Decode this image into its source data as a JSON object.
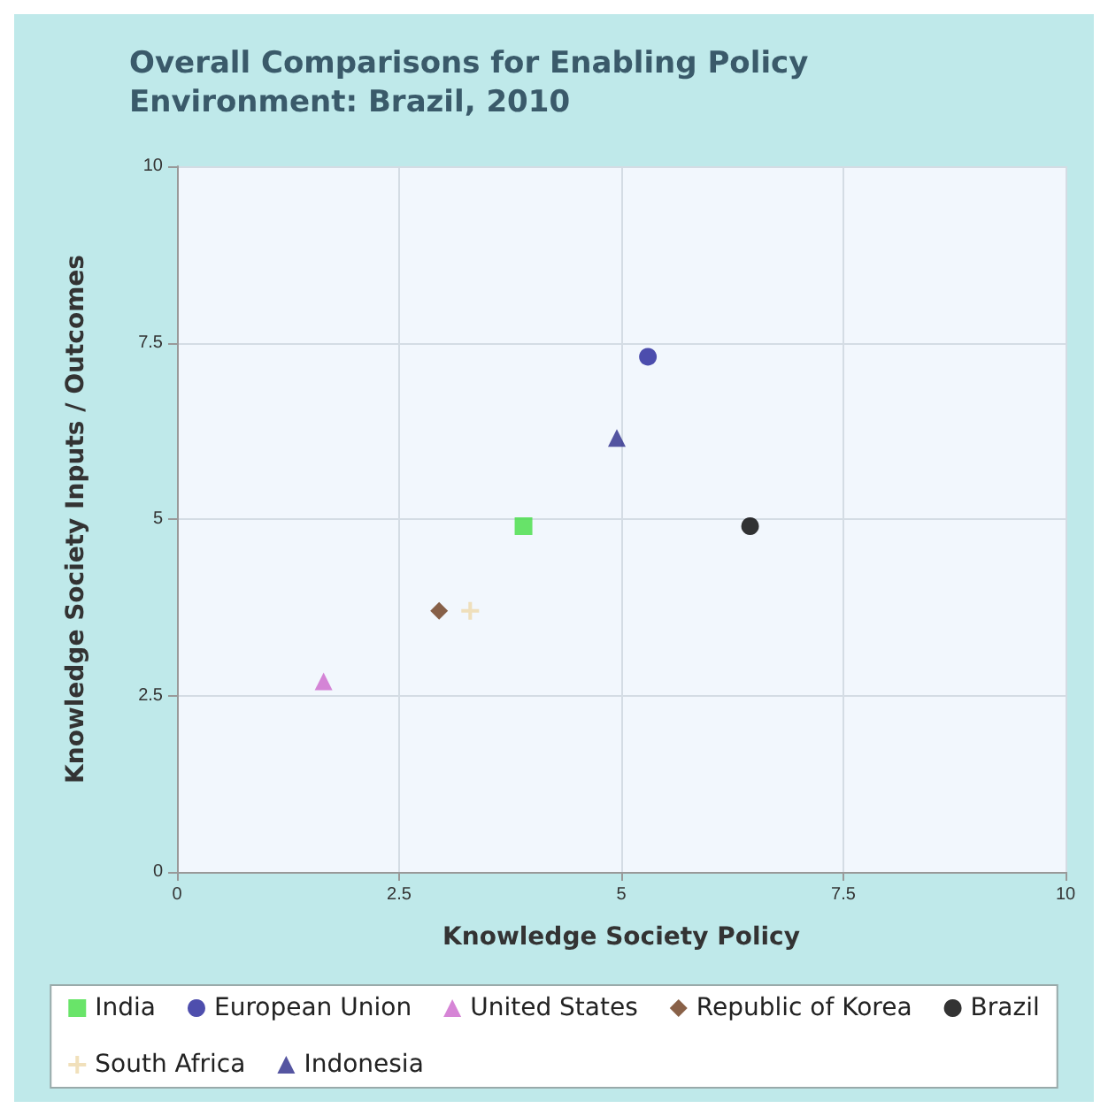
{
  "chart_data": {
    "type": "scatter",
    "title": "Overall Comparisons for Enabling Policy\nEnvironment: Brazil, 2010",
    "xlabel": "Knowledge Society Policy",
    "ylabel": "Knowledge Society Inputs / Outcomes",
    "xlim": [
      0,
      10
    ],
    "xticks": [
      0,
      2.5,
      5,
      7.5,
      10
    ],
    "ylim": [
      0,
      10
    ],
    "yticks": [
      0,
      2.5,
      5,
      7.5,
      10
    ],
    "grid": true,
    "legend": "bottom",
    "series": [
      {
        "name": "India",
        "color": "#44dd44",
        "marker": "square",
        "x": [
          3.9
        ],
        "values": [
          4.9
        ]
      },
      {
        "name": "European Union",
        "color": "#222299",
        "marker": "circle",
        "x": [
          5.3
        ],
        "values": [
          7.3
        ]
      },
      {
        "name": "United States",
        "color": "#cc66cc",
        "marker": "triangle",
        "x": [
          1.65
        ],
        "values": [
          2.7
        ]
      },
      {
        "name": "Republic of Korea",
        "color": "#6b3a1a",
        "marker": "diamond",
        "x": [
          2.95
        ],
        "values": [
          3.7
        ]
      },
      {
        "name": "Brazil",
        "color": "#000000",
        "marker": "circle",
        "x": [
          6.45
        ],
        "values": [
          4.9
        ]
      },
      {
        "name": "South Africa",
        "color": "#eed8aa",
        "marker": "cross",
        "x": [
          3.3
        ],
        "values": [
          3.7
        ]
      },
      {
        "name": "Indonesia",
        "color": "#2a2a8a",
        "marker": "triangle",
        "x": [
          4.95
        ],
        "values": [
          6.15
        ]
      }
    ]
  }
}
